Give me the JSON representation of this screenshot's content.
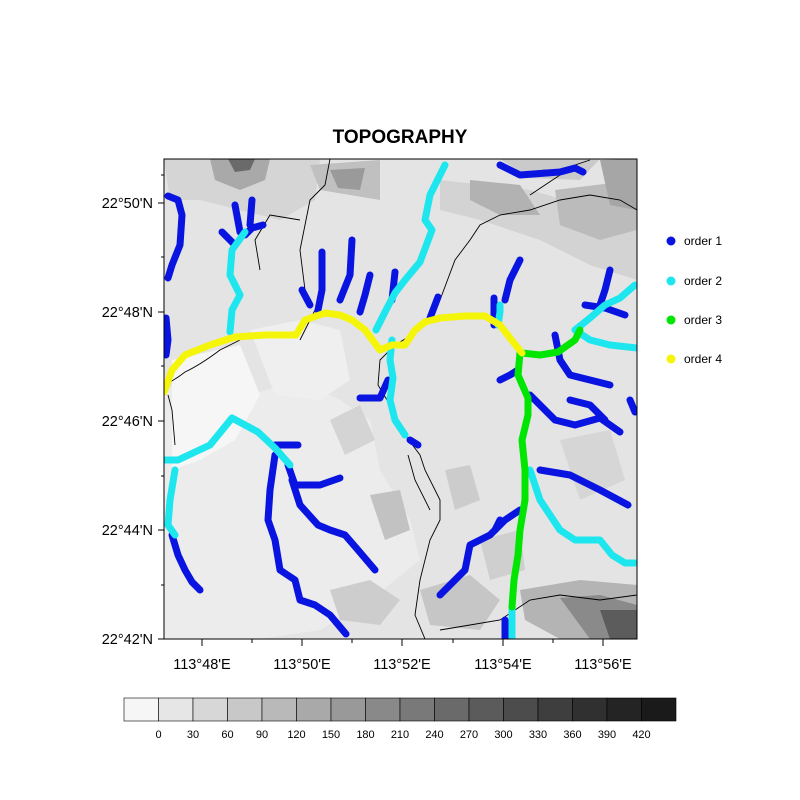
{
  "title": "TOPOGRAPHY",
  "lat_ticks": [
    "22°50'N",
    "22°48'N",
    "22°46'N",
    "22°44'N",
    "22°42'N"
  ],
  "lon_ticks": [
    "113°48'E",
    "113°50'E",
    "113°52'E",
    "113°54'E",
    "113°56'E"
  ],
  "legend": [
    {
      "label": "order 1",
      "color": "#0a14e0"
    },
    {
      "label": "order 2",
      "color": "#1ee6ee"
    },
    {
      "label": "order 3",
      "color": "#00e600"
    },
    {
      "label": "order 4",
      "color": "#f5f50a"
    }
  ],
  "colorbar": {
    "labels": [
      "0",
      "30",
      "60",
      "90",
      "120",
      "150",
      "180",
      "210",
      "240",
      "270",
      "300",
      "330",
      "360",
      "390",
      "420"
    ],
    "colors": [
      "#f6f6f6",
      "#e6e6e6",
      "#d7d7d7",
      "#c8c8c8",
      "#b9b9b9",
      "#a9a9a9",
      "#999999",
      "#898989",
      "#797979",
      "#6a6a6a",
      "#5b5b5b",
      "#4c4c4c",
      "#3e3e3e",
      "#303030",
      "#242424",
      "#1a1a1a"
    ]
  }
}
